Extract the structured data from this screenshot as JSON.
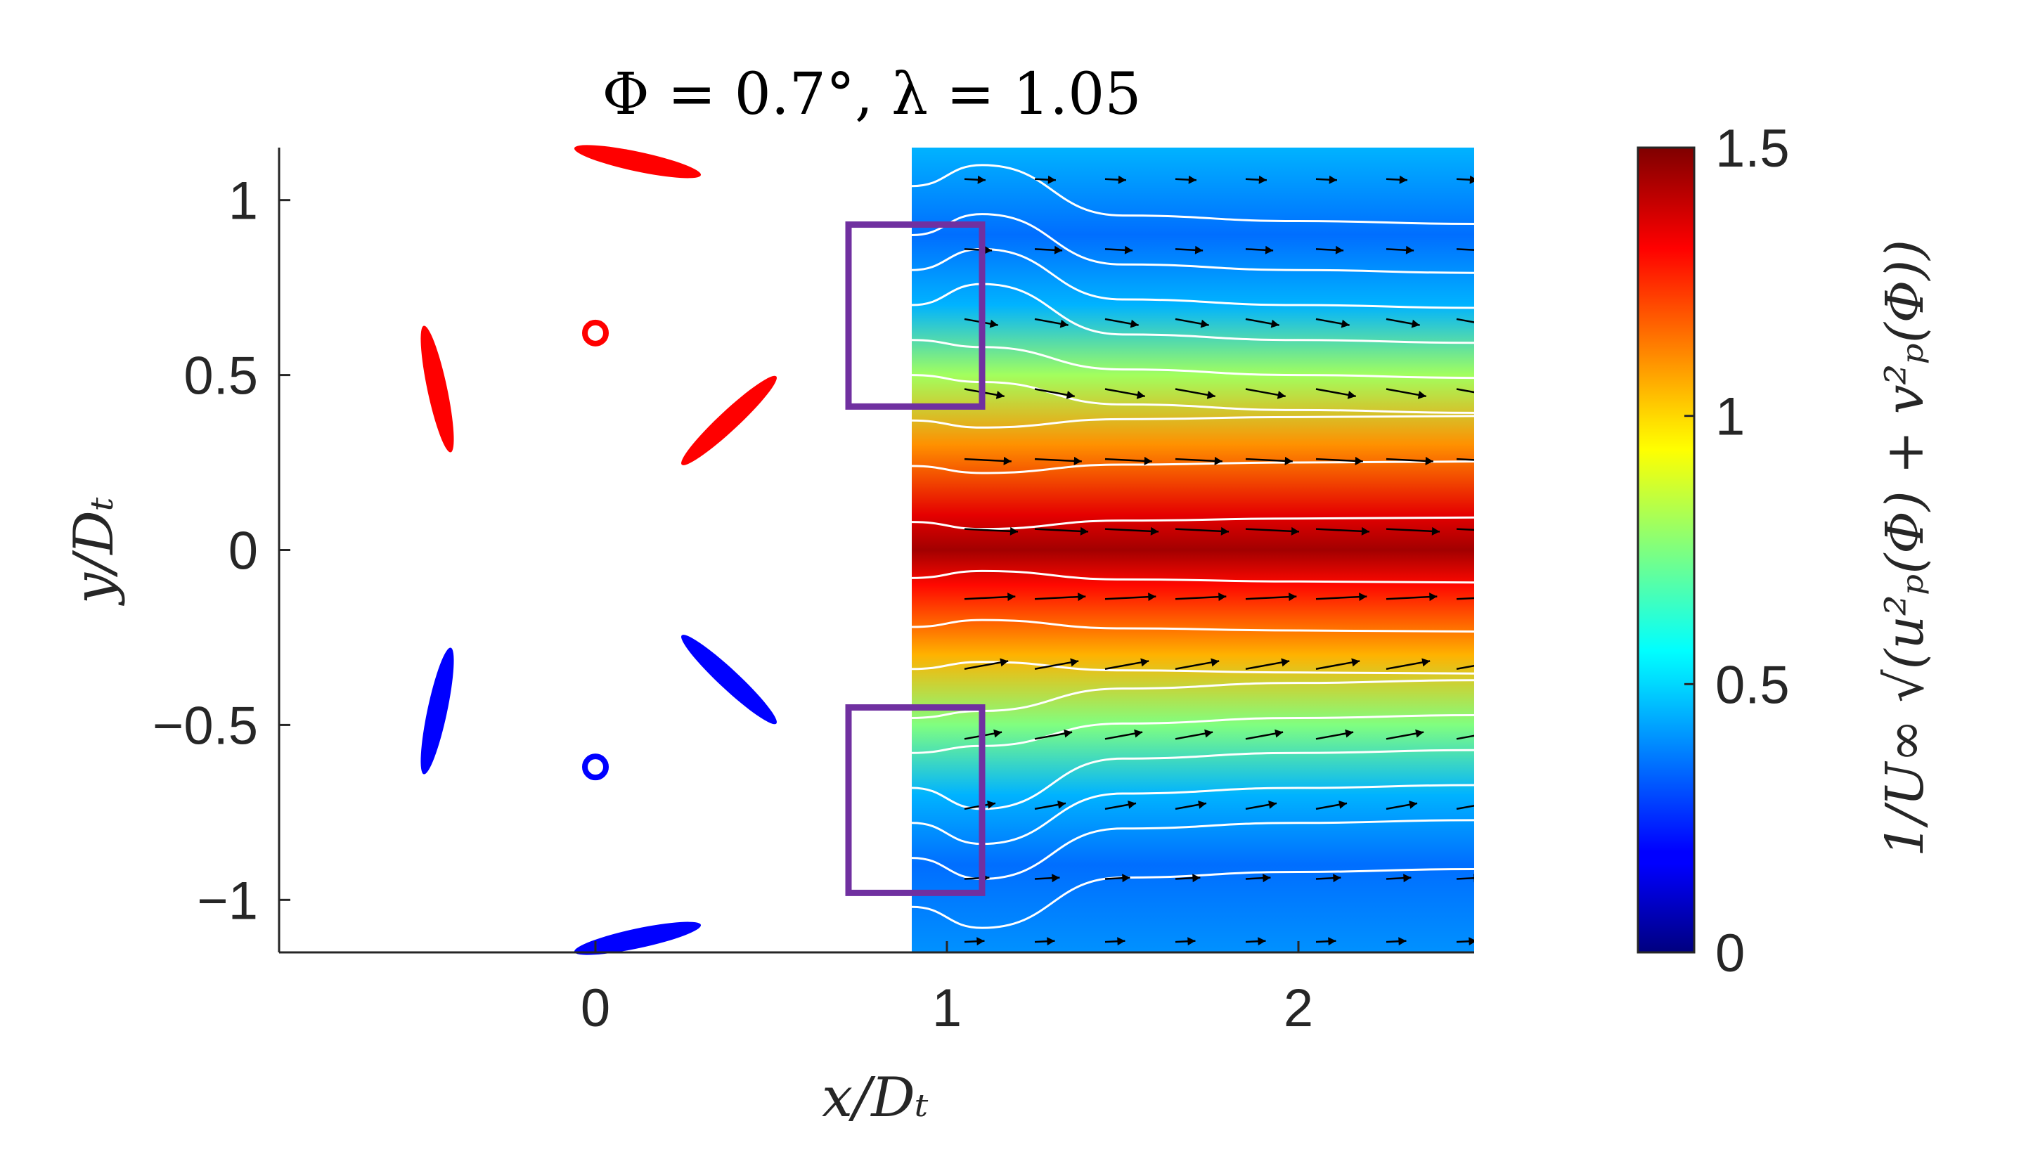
{
  "chart_data": {
    "type": "heatmap",
    "title": "Φ = 0.7°, λ = 1.05",
    "xlabel": "x/Dₜ",
    "ylabel": "y/Dₜ",
    "xlim": [
      -0.9,
      2.5
    ],
    "ylim": [
      -1.15,
      1.15
    ],
    "x_ticks": [
      0,
      1,
      2
    ],
    "x_tick_labels": [
      "0",
      "1",
      "2"
    ],
    "y_ticks": [
      1,
      0.5,
      0,
      -0.5,
      -1
    ],
    "y_tick_labels": [
      "1",
      "0.5",
      "0",
      "−0.5",
      "−1"
    ],
    "field_extent": {
      "x": [
        0.9,
        2.5
      ],
      "y": [
        -1.15,
        1.15
      ]
    },
    "colorbar": {
      "colormap": "jet",
      "range": [
        0,
        1.5
      ],
      "ticks": [
        0,
        0.5,
        1,
        1.5
      ],
      "tick_labels": [
        "0",
        "0.5",
        "1",
        "1.5"
      ],
      "label": "1/U∞ √(u²ₚ(Φ) + v²ₚ(Φ))"
    },
    "field_profile_y": [
      -1.15,
      -0.9,
      -0.7,
      -0.5,
      -0.3,
      -0.1,
      0,
      0.1,
      0.3,
      0.5,
      0.7,
      0.9,
      1.15
    ],
    "field_profile_values": [
      0.4,
      0.35,
      0.45,
      0.75,
      1.05,
      1.3,
      1.45,
      1.35,
      1.1,
      0.8,
      0.45,
      0.35,
      0.45
    ],
    "blades": [
      {
        "color": "#ff0000",
        "x": 0.12,
        "y": 1.11,
        "angle_deg": -12
      },
      {
        "color": "#ff0000",
        "x": -0.45,
        "y": 0.46,
        "angle_deg": -78
      },
      {
        "color": "#ff0000",
        "x": 0.38,
        "y": 0.37,
        "angle_deg": 43
      },
      {
        "color": "#0000ff",
        "x": 0.12,
        "y": -1.11,
        "angle_deg": 12
      },
      {
        "color": "#0000ff",
        "x": -0.45,
        "y": -0.46,
        "angle_deg": 78
      },
      {
        "color": "#0000ff",
        "x": 0.38,
        "y": -0.37,
        "angle_deg": -43
      }
    ],
    "hubs": [
      {
        "color": "#ff0000",
        "x": 0,
        "y": 0.62
      },
      {
        "color": "#0000ff",
        "x": 0,
        "y": -0.62
      }
    ],
    "highlight_boxes": [
      {
        "color": "#7030a0",
        "x": [
          0.72,
          1.1
        ],
        "y": [
          0.41,
          0.93
        ]
      },
      {
        "color": "#7030a0",
        "x": [
          0.72,
          1.1
        ],
        "y": [
          -0.98,
          -0.45
        ]
      }
    ],
    "streamlines_start_y": [
      1.02,
      0.88,
      0.78,
      0.68,
      0.58,
      0.48,
      0.35,
      0.22,
      0.06,
      -0.06,
      -0.2,
      -0.32,
      -0.46,
      -0.56,
      -0.66,
      -0.76,
      -0.86,
      -1.0
    ],
    "vector_rows_y": [
      1.06,
      0.86,
      0.66,
      0.46,
      0.26,
      0.06,
      -0.14,
      -0.34,
      -0.54,
      -0.74,
      -0.94,
      -1.12
    ]
  }
}
